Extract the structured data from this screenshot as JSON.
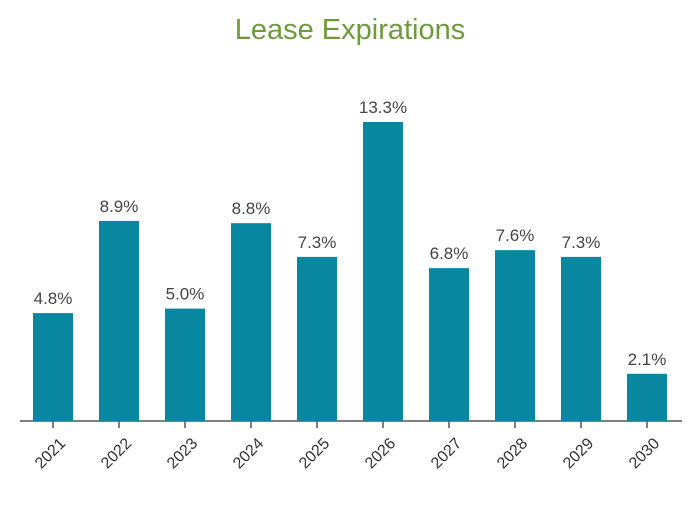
{
  "chart_data": {
    "type": "bar",
    "title": "Lease Expirations",
    "categories": [
      "2021",
      "2022",
      "2023",
      "2024",
      "2025",
      "2026",
      "2027",
      "2028",
      "2029",
      "2030"
    ],
    "values": [
      4.8,
      8.9,
      5.0,
      8.8,
      7.3,
      13.3,
      6.8,
      7.6,
      7.3,
      2.1
    ],
    "value_labels": [
      "4.8%",
      "8.9%",
      "5.0%",
      "8.8%",
      "7.3%",
      "13.3%",
      "6.8%",
      "7.6%",
      "7.3%",
      "2.1%"
    ],
    "xlabel": "",
    "ylabel": "",
    "ylim": [
      0,
      13.3
    ],
    "grid": false,
    "colors": {
      "bar": "#0a87a0",
      "title": "#6f9a3c",
      "axis": "#555555"
    }
  }
}
